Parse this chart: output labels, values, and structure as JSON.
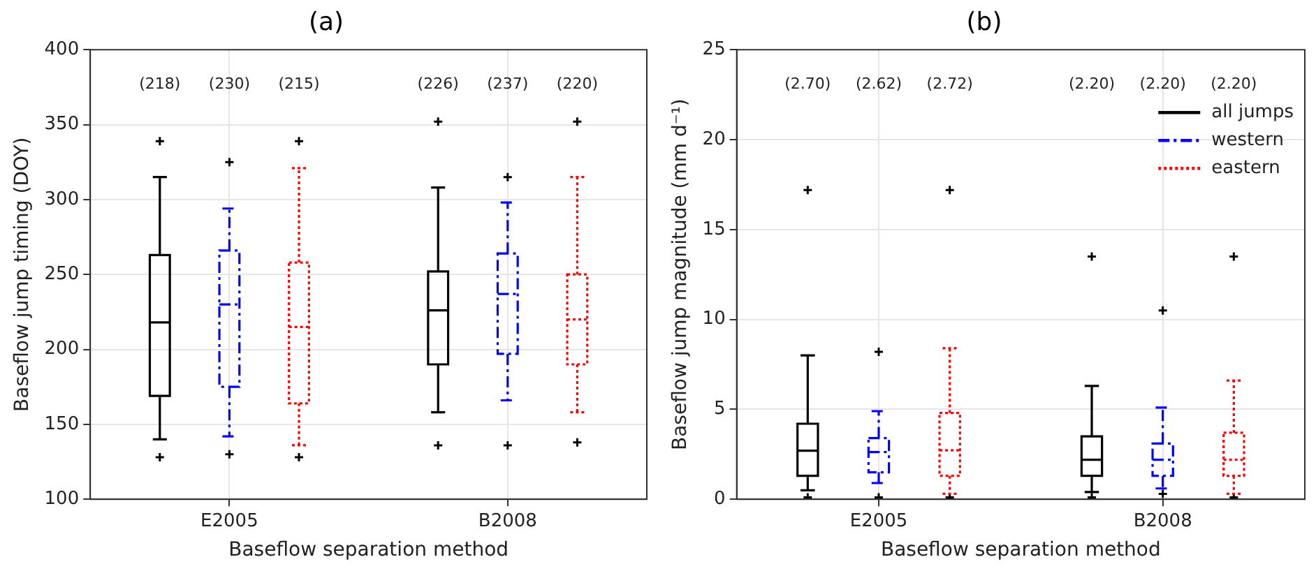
{
  "chart_data": [
    {
      "type": "box",
      "title": "(a)",
      "xlabel": "Baseflow separation method",
      "ylabel": "Baseflow jump timing (DOY)",
      "categories": [
        "E2005",
        "B2008"
      ],
      "ylim": [
        100,
        400
      ],
      "yticks": [
        100,
        150,
        200,
        250,
        300,
        350,
        400
      ],
      "grid": true,
      "legend": false,
      "marker": "cross",
      "series": [
        {
          "color": "#000000",
          "line_style": "solid",
          "value_labels": [
            "(218)",
            "(226)"
          ],
          "boxes": [
            {
              "low": 140,
              "q1": 169,
              "median": 218,
              "q3": 263,
              "high": 315,
              "outliers": [
                339,
                128
              ]
            },
            {
              "low": 158,
              "q1": 190,
              "median": 226,
              "q3": 252,
              "high": 308,
              "outliers": [
                352,
                136
              ]
            }
          ]
        },
        {
          "color": "#0000ff",
          "line_style": "dashdot",
          "value_labels": [
            "(230)",
            "(237)"
          ],
          "boxes": [
            {
              "low": 142,
              "q1": 175,
              "median": 230,
              "q3": 266,
              "high": 294,
              "outliers": [
                325,
                130
              ]
            },
            {
              "low": 166,
              "q1": 197,
              "median": 237,
              "q3": 264,
              "high": 298,
              "outliers": [
                315,
                136
              ]
            }
          ]
        },
        {
          "color": "#ff0000",
          "line_style": "dotted",
          "value_labels": [
            "(215)",
            "(220)"
          ],
          "boxes": [
            {
              "low": 136,
              "q1": 164,
              "median": 215,
              "q3": 258,
              "high": 321,
              "outliers": [
                339,
                128
              ]
            },
            {
              "low": 158,
              "q1": 190,
              "median": 220,
              "q3": 250,
              "high": 315,
              "outliers": [
                352,
                138
              ]
            }
          ]
        }
      ]
    },
    {
      "type": "box",
      "title": "(b)",
      "xlabel": "Baseflow separation method",
      "ylabel": "Baseflow jump magnitude (mm d⁻¹)",
      "categories": [
        "E2005",
        "B2008"
      ],
      "ylim": [
        0,
        25
      ],
      "yticks": [
        0,
        5,
        10,
        15,
        20,
        25
      ],
      "grid": true,
      "legend": "top right",
      "marker": "cross",
      "series": [
        {
          "name": "all jumps",
          "color": "#000000",
          "line_style": "solid",
          "value_labels": [
            "(2.70)",
            "(2.20)"
          ],
          "boxes": [
            {
              "low": 0.5,
              "q1": 1.3,
              "median": 2.7,
              "q3": 4.2,
              "high": 8.0,
              "outliers": [
                17.2,
                0.1
              ]
            },
            {
              "low": 0.4,
              "q1": 1.3,
              "median": 2.2,
              "q3": 3.5,
              "high": 6.3,
              "outliers": [
                13.5,
                0.1
              ]
            }
          ]
        },
        {
          "name": "western",
          "color": "#0000ff",
          "line_style": "dashdot",
          "value_labels": [
            "(2.62)",
            "(2.20)"
          ],
          "boxes": [
            {
              "low": 0.9,
              "q1": 1.5,
              "median": 2.62,
              "q3": 3.4,
              "high": 4.9,
              "outliers": [
                8.2,
                0.1
              ]
            },
            {
              "low": 0.6,
              "q1": 1.3,
              "median": 2.2,
              "q3": 3.1,
              "high": 5.1,
              "outliers": [
                10.5,
                0.3
              ]
            }
          ]
        },
        {
          "name": "eastern",
          "color": "#ff0000",
          "line_style": "dotted",
          "value_labels": [
            "(2.72)",
            "(2.20)"
          ],
          "boxes": [
            {
              "low": 0.3,
              "q1": 1.3,
              "median": 2.72,
              "q3": 4.8,
              "high": 8.4,
              "outliers": [
                17.2,
                0.1
              ]
            },
            {
              "low": 0.3,
              "q1": 1.3,
              "median": 2.2,
              "q3": 3.7,
              "high": 6.6,
              "outliers": [
                13.5,
                0.1
              ]
            }
          ]
        }
      ]
    }
  ]
}
